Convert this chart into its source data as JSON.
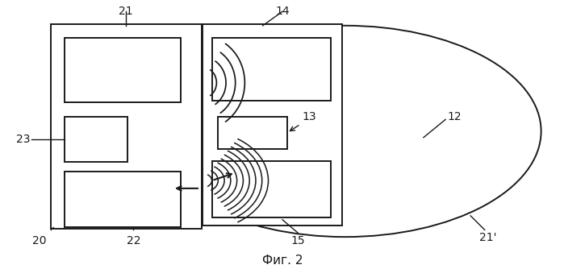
{
  "title": "Фиг. 2",
  "background_color": "#ffffff",
  "line_color": "#1a1a1a",
  "fig_width": 6.99,
  "fig_height": 3.34,
  "dpi": 100
}
